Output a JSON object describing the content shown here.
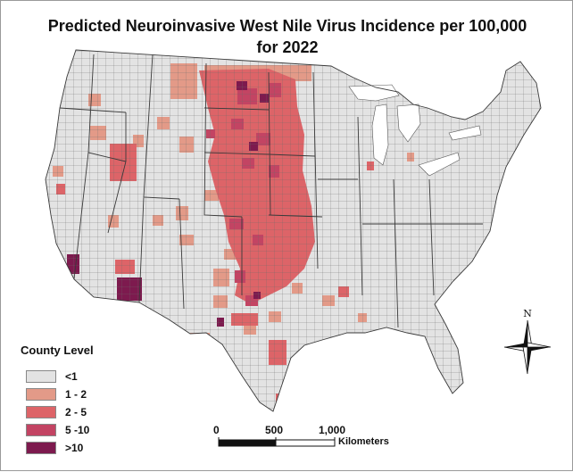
{
  "title_line1": "Predicted Neuroinvasive West Nile Virus Incidence per 100,000",
  "title_line2": "for 2022",
  "legend": {
    "title": "County Level",
    "items": [
      {
        "label": "<1",
        "color": "#e3e3e3"
      },
      {
        "label": "1 - 2",
        "color": "#e39a88"
      },
      {
        "label": "2 - 5",
        "color": "#dd6468"
      },
      {
        "label": "5 -10",
        "color": "#c34463"
      },
      {
        "label": ">10",
        "color": "#7d1a4e"
      }
    ]
  },
  "scale_bar": {
    "ticks": [
      "0",
      "500",
      "1,000"
    ],
    "unit": "Kilometers"
  },
  "north_arrow": {
    "label": "N"
  }
}
